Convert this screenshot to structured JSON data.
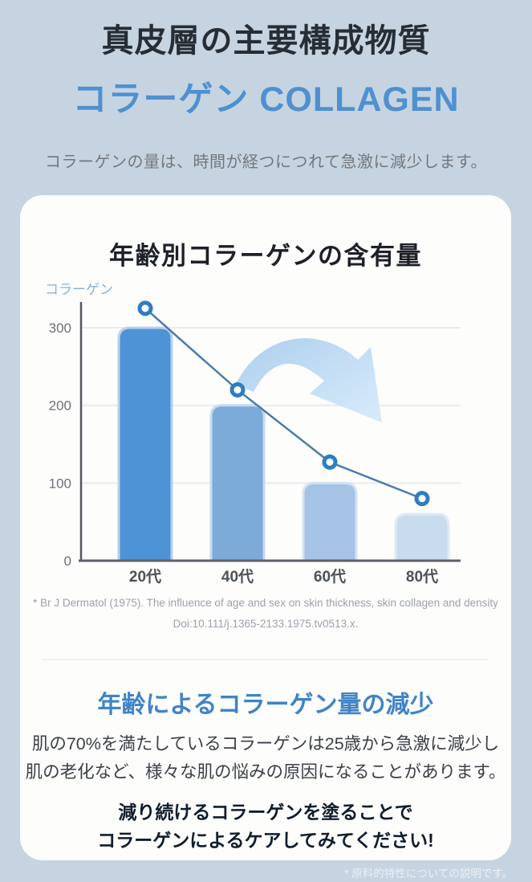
{
  "colors": {
    "background": "#c6d4e1",
    "title": "#272d35",
    "accent_blue": "#4f90d1",
    "section_heading_blue": "#4084c6",
    "body_text": "#3b4046",
    "emphasis_text": "#101d2b",
    "muted_text": "#9ba1a7",
    "pale_note": "#eaeff5"
  },
  "header": {
    "title": "真皮層の主要構成物質",
    "subtitle": "コラーゲン COLLAGEN",
    "description": "コラーゲンの量は、時間が経つにつれて急激に減少します。"
  },
  "card": {
    "chart_title": "年齢別コラーゲンの含有量",
    "footnote_line1": "* Br J Dermatol (1975). The influence of age and sex on skin thickness, skin collagen and density",
    "footnote_line2": "Doi:10.111/j.1365-2133.1975.tv0513.x.",
    "section": {
      "heading": "年齢によるコラーゲン量の減少",
      "body_line1": "肌の70%を満たしているコラーゲンは25歳から急激に減少し",
      "body_line2": "肌の老化など、様々な肌の悩みの原因になることがあります。",
      "bold_line1": "減り続けるコラーゲンを塗ることで",
      "bold_line2": "コラーゲンによるケアしてみてください!"
    }
  },
  "chart_data": {
    "type": "bar",
    "title": "年齢別コラーゲンの含有量",
    "y_axis_label": "コラーゲン",
    "xlabel": "",
    "ylabel": "コラーゲン",
    "categories": [
      "20代",
      "40代",
      "60代",
      "80代"
    ],
    "series": [
      {
        "name": "collagen-amount-bars",
        "type": "bar",
        "values": [
          300,
          200,
          100,
          60
        ],
        "colors": [
          "#4e93d5",
          "#7caad9",
          "#a5c3e4",
          "#c9dcee"
        ],
        "edge_colors": [
          "#b9d2ea",
          "#c6daee",
          "#d3e2f2",
          "#dfeaf6"
        ]
      },
      {
        "name": "collagen-decline-trend",
        "type": "line",
        "values": [
          325,
          220,
          127,
          80
        ],
        "color": "#4a7bab",
        "marker": "open-circle",
        "marker_color": "#2f7dc0"
      }
    ],
    "y_ticks": [
      0,
      100,
      200,
      300
    ],
    "ylim": [
      0,
      340
    ],
    "grid": true,
    "legend": "none",
    "annotations": [
      "decline-arrow pointing down-right"
    ]
  },
  "footer_note": "* 原料的特性についての説明です。"
}
